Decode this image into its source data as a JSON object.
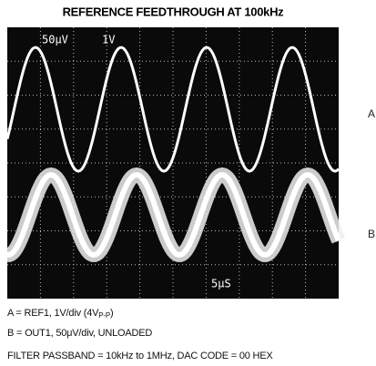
{
  "title": "REFERENCE FEEDTHROUGH AT 100kHz",
  "screen": {
    "channel_b_scale": "50μV",
    "channel_a_scale": "1V",
    "timebase": "5μS"
  },
  "trace_labels": {
    "a": "A",
    "b": "B"
  },
  "captions": {
    "line_a": {
      "before": "A = REF1, 1V/div (4V",
      "sub": "P-P",
      "after": ")"
    },
    "line_b": "B = OUT1, 50μV/div, UNLOADED",
    "line_filter": "FILTER PASSBAND = 10kHz to 1MHz, DAC CODE = 00 HEX"
  }
}
